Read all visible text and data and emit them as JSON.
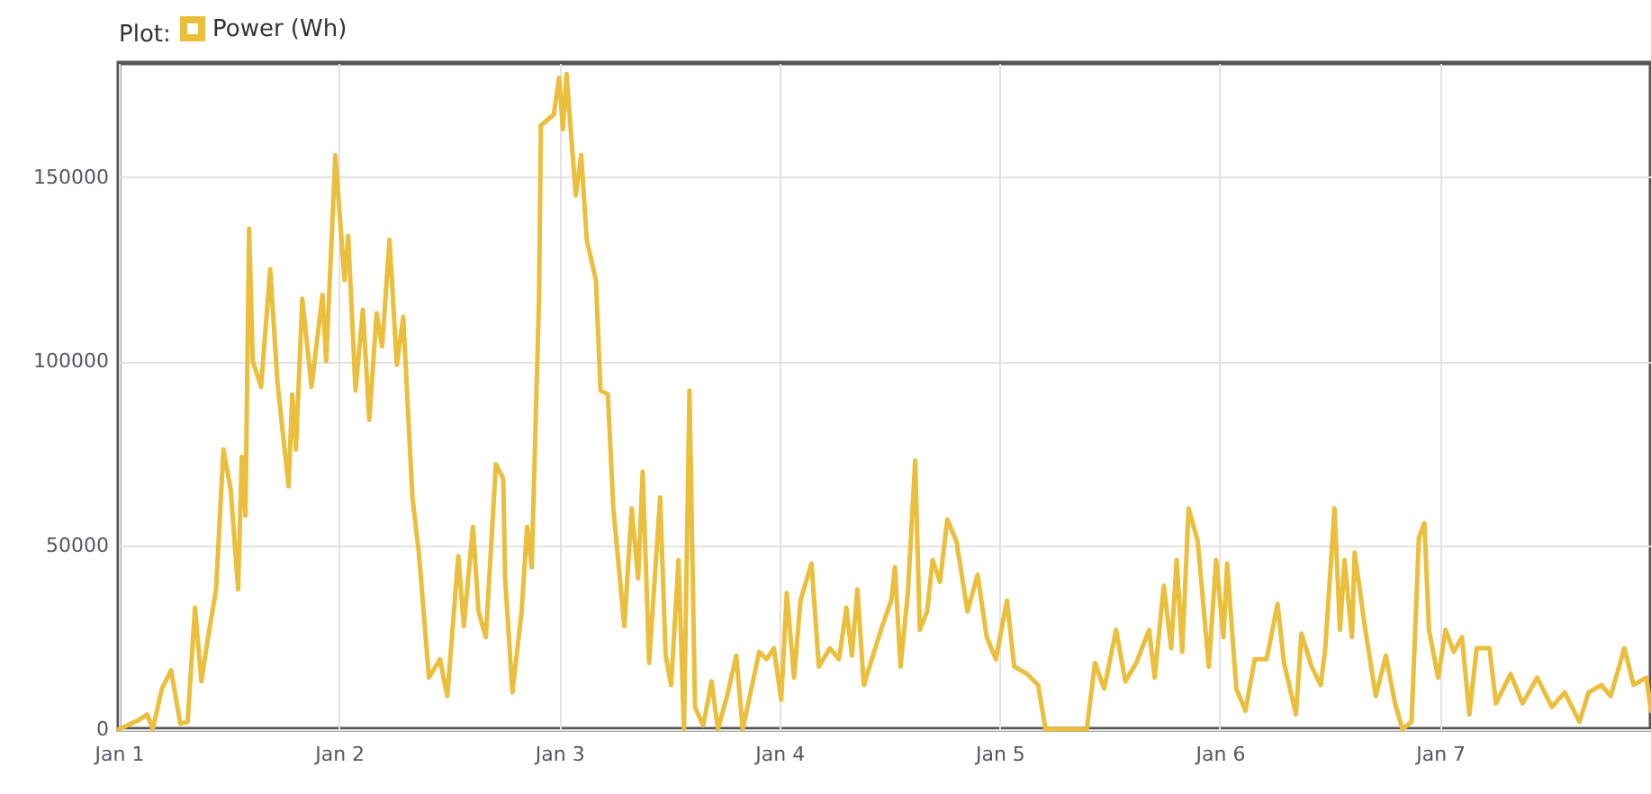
{
  "chart_data": {
    "type": "line",
    "legend_title": "Plot:",
    "legend": "top left",
    "grid": true,
    "marker": "none",
    "ylim": [
      0,
      181000
    ],
    "yticks": [
      0,
      50000,
      100000,
      150000
    ],
    "xlim": [
      "--01-01T00:00",
      "--01-07T23:00"
    ],
    "xticks": [
      {
        "value": "--01-01",
        "label": "Jan 1"
      },
      {
        "value": "--01-02",
        "label": "Jan 2"
      },
      {
        "value": "--01-03",
        "label": "Jan 3"
      },
      {
        "value": "--01-04",
        "label": "Jan 4"
      },
      {
        "value": "--01-05",
        "label": "Jan 5"
      },
      {
        "value": "--01-06",
        "label": "Jan 6"
      },
      {
        "value": "--01-07",
        "label": "Jan 7"
      }
    ],
    "x": [
      "--01-01T00:00",
      "--01-01T02:12",
      "--01-01T03:06",
      "--01-01T03:42",
      "--01-01T04:42",
      "--01-01T05:42",
      "--01-01T06:42",
      "--01-01T07:30",
      "--01-01T08:18",
      "--01-01T09:00",
      "--01-01T09:36",
      "--01-01T10:36",
      "--01-01T11:24",
      "--01-01T12:12",
      "--01-01T13:00",
      "--01-01T13:24",
      "--01-01T13:48",
      "--01-01T14:12",
      "--01-01T14:36",
      "--01-01T15:30",
      "--01-01T16:30",
      "--01-01T17:18",
      "--01-01T18:30",
      "--01-01T18:54",
      "--01-01T19:18",
      "--01-01T20:00",
      "--01-01T21:00",
      "--01-01T22:12",
      "--01-01T22:36",
      "--01-01T23:36",
      "--01-02T00:36",
      "--01-02T01:00",
      "--01-02T01:48",
      "--01-02T02:36",
      "--01-02T03:18",
      "--01-02T04:06",
      "--01-02T04:42",
      "--01-02T05:30",
      "--01-02T06:18",
      "--01-02T07:00",
      "--01-02T08:00",
      "--01-02T08:42",
      "--01-02T09:48",
      "--01-02T11:00",
      "--01-02T11:48",
      "--01-02T13:00",
      "--01-02T13:36",
      "--01-02T14:36",
      "--01-02T15:12",
      "--01-02T16:00",
      "--01-02T17:06",
      "--01-02T17:54",
      "--01-02T18:06",
      "--01-02T18:54",
      "--01-02T19:54",
      "--01-02T20:30",
      "--01-02T21:00",
      "--01-02T21:48",
      "--01-02T22:00",
      "--01-02T23:24",
      "--01-03T00:00",
      "--01-03T00:24",
      "--01-03T00:48",
      "--01-03T01:48",
      "--01-03T02:24",
      "--01-03T03:00",
      "--01-03T04:00",
      "--01-03T04:30",
      "--01-03T05:18",
      "--01-03T05:54",
      "--01-03T07:06",
      "--01-03T07:54",
      "--01-03T08:36",
      "--01-03T09:06",
      "--01-03T09:48",
      "--01-03T11:00",
      "--01-03T11:36",
      "--01-03T12:12",
      "--01-03T13:00",
      "--01-03T13:36",
      "--01-03T14:12",
      "--01-03T14:48",
      "--01-03T15:42",
      "--01-03T16:36",
      "--01-03T17:18",
      "--01-03T18:18",
      "--01-03T19:18",
      "--01-03T20:00",
      "--01-03T21:48",
      "--01-03T22:36",
      "--01-03T23:24",
      "--01-04T00:12",
      "--01-04T00:48",
      "--01-04T01:36",
      "--01-04T02:18",
      "--01-04T03:30",
      "--01-04T04:18",
      "--01-04T05:30",
      "--01-04T06:30",
      "--01-04T07:18",
      "--01-04T07:54",
      "--01-04T08:30",
      "--01-04T09:12",
      "--01-04T10:12",
      "--01-04T11:12",
      "--01-04T12:12",
      "--01-04T12:36",
      "--01-04T13:12",
      "--01-04T14:00",
      "--01-04T14:48",
      "--01-04T15:18",
      "--01-04T16:06",
      "--01-04T16:42",
      "--01-04T17:30",
      "--01-04T18:18",
      "--01-04T19:18",
      "--01-04T20:30",
      "--01-04T21:36",
      "--01-04T22:36",
      "--01-04T23:36",
      "--01-05T00:48",
      "--01-05T01:36",
      "--01-05T03:00",
      "--01-05T04:12",
      "--01-05T05:00",
      "--01-05T09:30",
      "--01-05T10:24",
      "--01-05T11:24",
      "--01-05T12:42",
      "--01-05T13:42",
      "--01-05T14:54",
      "--01-05T16:18",
      "--01-05T16:54",
      "--01-05T17:54",
      "--01-05T18:42",
      "--01-05T19:18",
      "--01-05T19:54",
      "--01-05T20:36",
      "--01-05T21:36",
      "--01-05T22:48",
      "--01-05T23:36",
      "--01-06T00:24",
      "--01-06T00:48",
      "--01-06T01:48",
      "--01-06T02:48",
      "--01-06T03:48",
      "--01-06T05:06",
      "--01-06T06:18",
      "--01-06T07:00",
      "--01-06T08:18",
      "--01-06T08:54",
      "--01-06T10:00",
      "--01-06T11:00",
      "--01-06T11:30",
      "--01-06T12:30",
      "--01-06T13:06",
      "--01-06T13:36",
      "--01-06T14:24",
      "--01-06T14:42",
      "--01-06T15:48",
      "--01-06T17:00",
      "--01-06T18:06",
      "--01-06T19:06",
      "--01-06T19:54",
      "--01-06T20:54",
      "--01-06T21:42",
      "--01-06T22:18",
      "--01-06T22:48",
      "--01-06T23:48",
      "--01-07T00:36",
      "--01-07T01:30",
      "--01-07T02:24",
      "--01-07T03:12",
      "--01-07T04:00",
      "--01-07T05:24",
      "--01-07T06:06",
      "--01-07T07:42",
      "--01-07T09:00",
      "--01-07T10:36",
      "--01-07T12:12",
      "--01-07T13:36",
      "--01-07T15:12",
      "--01-07T16:12",
      "--01-07T17:36",
      "--01-07T18:36",
      "--01-07T20:06",
      "--01-07T21:06",
      "--01-07T22:30",
      "--01-07T23:00"
    ],
    "series": [
      {
        "name": "Power (Wh)",
        "color": "#ebbe3c",
        "values": [
          0,
          2500,
          4000,
          0,
          11000,
          16000,
          1500,
          2000,
          33000,
          13000,
          23000,
          38000,
          76000,
          65000,
          38000,
          74000,
          58000,
          136000,
          100000,
          93000,
          125000,
          94000,
          66000,
          91000,
          76000,
          117000,
          93000,
          118000,
          100000,
          156000,
          122000,
          134000,
          92000,
          114000,
          84000,
          113000,
          104000,
          133000,
          99000,
          112000,
          63000,
          48000,
          14000,
          19000,
          9000,
          47000,
          28000,
          55000,
          32000,
          25000,
          72000,
          68000,
          41000,
          10000,
          32000,
          55000,
          44000,
          117000,
          164000,
          167000,
          177000,
          163000,
          178000,
          145000,
          156000,
          133000,
          122000,
          92000,
          91000,
          60000,
          28000,
          60000,
          41000,
          70000,
          18000,
          63000,
          20000,
          12000,
          46000,
          0,
          92000,
          6000,
          1000,
          13000,
          0,
          9000,
          20000,
          0,
          21000,
          19000,
          22000,
          8000,
          37000,
          14000,
          35000,
          45000,
          17000,
          22000,
          19000,
          33000,
          20000,
          38000,
          12000,
          20000,
          28000,
          35000,
          44000,
          17000,
          37000,
          73000,
          27000,
          32000,
          46000,
          40000,
          57000,
          51000,
          32000,
          42000,
          25000,
          19000,
          35000,
          17000,
          15000,
          12000,
          0,
          0,
          18000,
          11000,
          27000,
          13000,
          18000,
          27000,
          14000,
          39000,
          22000,
          46000,
          21000,
          60000,
          51000,
          17000,
          46000,
          25000,
          45000,
          11000,
          5000,
          19000,
          19000,
          34000,
          18000,
          4000,
          26000,
          17000,
          12000,
          22000,
          60000,
          27000,
          46000,
          25000,
          48000,
          28000,
          9000,
          20000,
          7000,
          0,
          2000,
          52000,
          56000,
          27000,
          14000,
          27000,
          21000,
          25000,
          4000,
          22000,
          22000,
          7000,
          15000,
          7000,
          14000,
          6000,
          10000,
          2000,
          10000,
          12000,
          9000,
          22000,
          12000,
          14000,
          5000
        ]
      }
    ]
  }
}
